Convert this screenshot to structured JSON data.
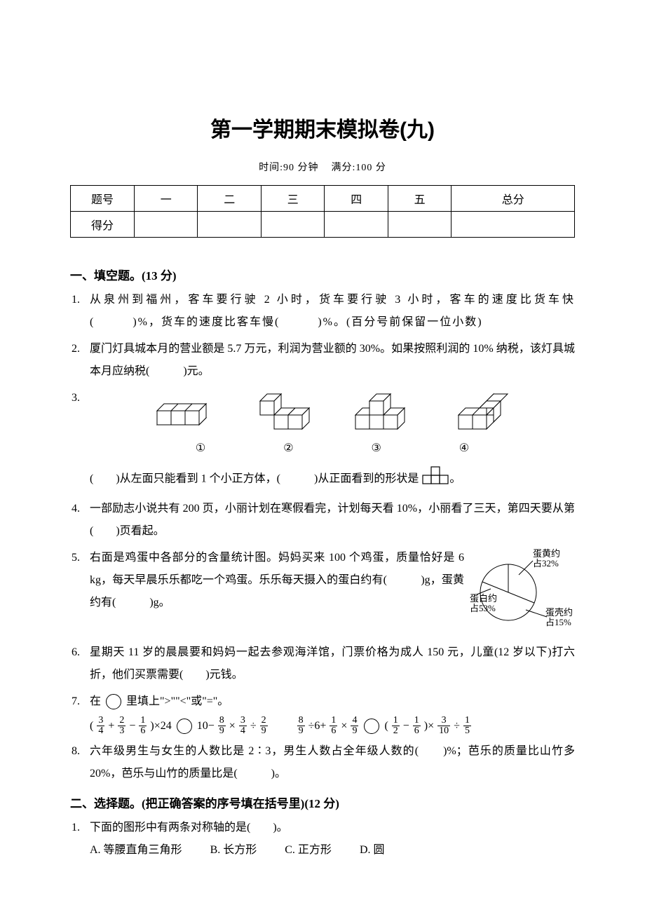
{
  "title": "第一学期期末模拟卷(九)",
  "meta": {
    "time_label": "时间:",
    "time_value": "90 分钟",
    "full_label": "满分:",
    "full_value": "100 分"
  },
  "score_table": {
    "row1_label": "题号",
    "cols": [
      "一",
      "二",
      "三",
      "四",
      "五",
      "总分"
    ],
    "row2_label": "得分"
  },
  "section1": {
    "title": "一、填空题。(13 分)",
    "q1": "从泉州到福州，客车要行驶 2 小时，货车要行驶 3 小时，客车的速度比货车快(　　　)%，货车的速度比客车慢(　　　)%。(百分号前保留一位小数)",
    "q2": "厦门灯具城本月的营业额是 5.7 万元，利润为营业额的 30%。如果按照利润的 10% 纳税，该灯具城本月应纳税(　　　)元。",
    "q3_labels": [
      "①",
      "②",
      "③",
      "④"
    ],
    "q3_text": "(　　)从左面只能看到 1 个小正方体，(　　　)从正面看到的形状是",
    "q3_tail": "。",
    "q4": "一部励志小说共有 200 页，小丽计划在寒假看完，计划每天看 10%，小丽看了三天，第四天要从第(　　)页看起。",
    "q5": "右面是鸡蛋中各部分的含量统计图。妈妈买来 100 个鸡蛋，质量恰好是 6 kg，每天早晨乐乐都吃一个鸡蛋。乐乐每天摄入的蛋白约有(　　　)g，蛋黄约有(　　　)g。",
    "pie": {
      "slices": [
        {
          "label": "蛋黄约\n占32%",
          "value": 32,
          "color": "#ffffff"
        },
        {
          "label": "蛋白约\n占53%",
          "value": 53,
          "color": "#ffffff"
        },
        {
          "label": "蛋壳约\n占15%",
          "value": 15,
          "color": "#ffffff"
        }
      ],
      "stroke": "#000000"
    },
    "q6": "星期天 11 岁的晨晨要和妈妈一起去参观海洋馆，门票价格为成人 150 元，儿童(12 岁以下)打六折，他们买票需要(　　)元钱。",
    "q7_intro": "在",
    "q7_mid": "里填上\">\"\"<\"或\"=\"。",
    "q7_eq1": {
      "left": [
        {
          "t": "("
        },
        {
          "f": [
            3,
            4
          ]
        },
        {
          "t": "+"
        },
        {
          "f": [
            2,
            3
          ]
        },
        {
          "t": "−"
        },
        {
          "f": [
            1,
            6
          ]
        },
        {
          "t": ")×24"
        }
      ],
      "right": [
        {
          "t": "10−"
        },
        {
          "f": [
            8,
            9
          ]
        },
        {
          "t": "×"
        },
        {
          "f": [
            3,
            4
          ]
        },
        {
          "t": "÷"
        },
        {
          "f": [
            2,
            9
          ]
        }
      ]
    },
    "q7_eq2": {
      "left": [
        {
          "f": [
            8,
            9
          ]
        },
        {
          "t": "÷6+"
        },
        {
          "f": [
            1,
            6
          ]
        },
        {
          "t": "×"
        },
        {
          "f": [
            4,
            9
          ]
        }
      ],
      "right": [
        {
          "t": "("
        },
        {
          "f": [
            1,
            2
          ]
        },
        {
          "t": "−"
        },
        {
          "f": [
            1,
            6
          ]
        },
        {
          "t": ")×"
        },
        {
          "f": [
            3,
            10
          ]
        },
        {
          "t": "÷"
        },
        {
          "f": [
            1,
            5
          ]
        }
      ]
    },
    "q8": "六年级男生与女生的人数比是 2∶3，男生人数占全年级人数的(　　)%；芭乐的质量比山竹多 20%，芭乐与山竹的质量比是(　　　)。"
  },
  "section2": {
    "title": "二、选择题。(把正确答案的序号填在括号里)(12 分)",
    "q1": {
      "stem": "下面的图形中有两条对称轴的是(　　)。",
      "opts": [
        "A. 等腰直角三角形",
        "B. 长方形",
        "C. 正方形",
        "D. 圆"
      ]
    }
  }
}
